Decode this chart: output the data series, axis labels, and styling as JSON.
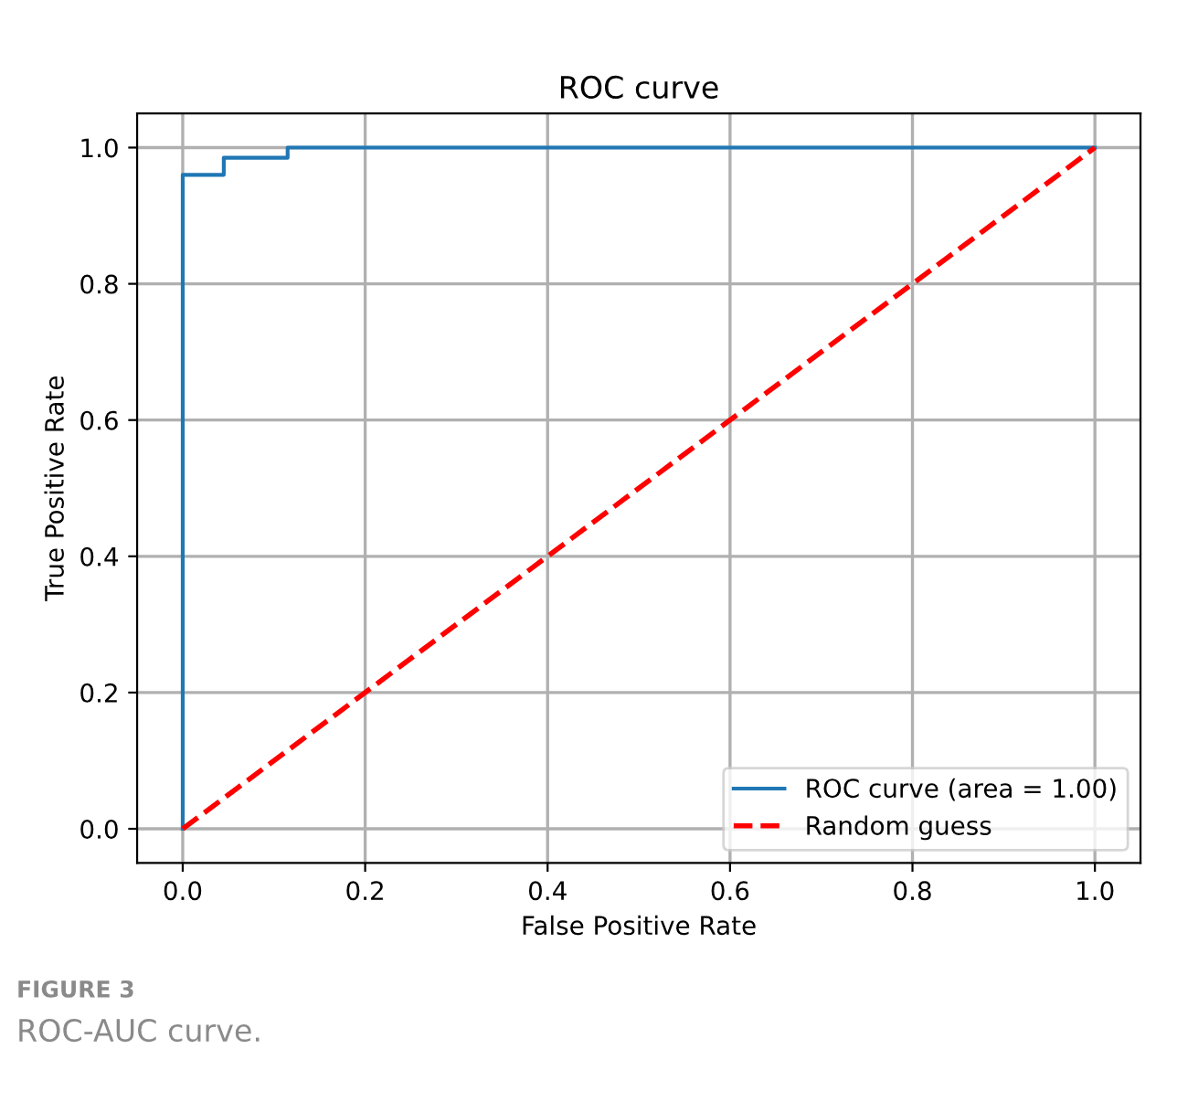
{
  "chart_data": {
    "type": "line",
    "title": "ROC curve",
    "xlabel": "False Positive Rate",
    "ylabel": "True Positive Rate",
    "series": [
      {
        "name": "ROC curve (area = 1.00)",
        "color": "#1f77b4",
        "line_style": "solid",
        "x": [
          0,
          0,
          0.045,
          0.045,
          0.115,
          0.115,
          1.0
        ],
        "values": [
          0,
          0.96,
          0.96,
          0.985,
          0.985,
          1.0,
          1.0
        ]
      },
      {
        "name": "Random guess",
        "color": "#ff0000",
        "line_style": "dashed",
        "x": [
          0,
          1
        ],
        "values": [
          0,
          1
        ]
      }
    ],
    "xlim": [
      -0.05,
      1.05
    ],
    "ylim": [
      -0.05,
      1.05
    ],
    "xticks": [
      {
        "value": 0,
        "label": "0.0"
      },
      0.2,
      0.4,
      0.6,
      0.8,
      {
        "value": 1,
        "label": "1.0"
      }
    ],
    "yticks": [
      {
        "value": 0,
        "label": "0.0"
      },
      0.2,
      0.4,
      0.6,
      0.8,
      {
        "value": 1,
        "label": "1.0"
      }
    ],
    "grid": true,
    "legend": "bottom right",
    "annotations": [
      "FIGURE 3",
      "ROC-AUC curve."
    ]
  }
}
